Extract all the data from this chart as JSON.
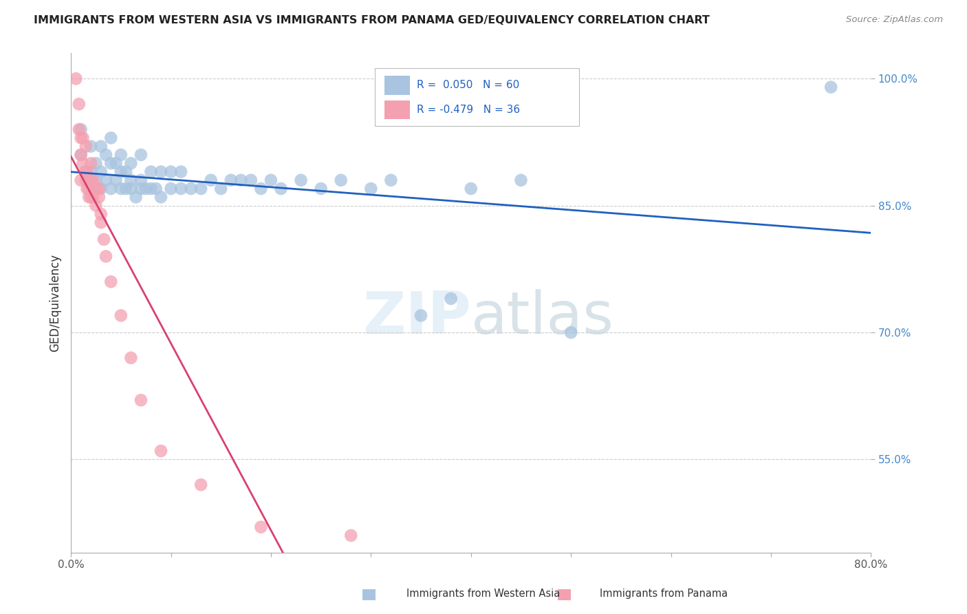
{
  "title": "IMMIGRANTS FROM WESTERN ASIA VS IMMIGRANTS FROM PANAMA GED/EQUIVALENCY CORRELATION CHART",
  "source": "Source: ZipAtlas.com",
  "ylabel": "GED/Equivalency",
  "xlim": [
    0.0,
    0.8
  ],
  "ylim": [
    0.44,
    1.03
  ],
  "x_ticks": [
    0.0,
    0.1,
    0.2,
    0.3,
    0.4,
    0.5,
    0.6,
    0.7,
    0.8
  ],
  "y_ticks": [
    0.55,
    0.7,
    0.85,
    1.0
  ],
  "y_tick_labels": [
    "55.0%",
    "70.0%",
    "85.0%",
    "100.0%"
  ],
  "blue_color": "#a8c4e0",
  "pink_color": "#f4a0b0",
  "line_blue": "#2060c0",
  "line_pink": "#d94070",
  "blue_scatter_x": [
    0.01,
    0.01,
    0.02,
    0.02,
    0.02,
    0.025,
    0.025,
    0.03,
    0.03,
    0.03,
    0.035,
    0.035,
    0.04,
    0.04,
    0.04,
    0.045,
    0.045,
    0.05,
    0.05,
    0.05,
    0.055,
    0.055,
    0.06,
    0.06,
    0.06,
    0.065,
    0.07,
    0.07,
    0.07,
    0.075,
    0.08,
    0.08,
    0.085,
    0.09,
    0.09,
    0.1,
    0.1,
    0.11,
    0.11,
    0.12,
    0.13,
    0.14,
    0.15,
    0.16,
    0.17,
    0.18,
    0.19,
    0.2,
    0.21,
    0.23,
    0.25,
    0.27,
    0.3,
    0.32,
    0.35,
    0.38,
    0.4,
    0.45,
    0.5,
    0.76
  ],
  "blue_scatter_y": [
    0.94,
    0.91,
    0.89,
    0.88,
    0.92,
    0.88,
    0.9,
    0.87,
    0.89,
    0.92,
    0.88,
    0.91,
    0.87,
    0.9,
    0.93,
    0.88,
    0.9,
    0.87,
    0.89,
    0.91,
    0.87,
    0.89,
    0.87,
    0.88,
    0.9,
    0.86,
    0.87,
    0.88,
    0.91,
    0.87,
    0.87,
    0.89,
    0.87,
    0.86,
    0.89,
    0.87,
    0.89,
    0.87,
    0.89,
    0.87,
    0.87,
    0.88,
    0.87,
    0.88,
    0.88,
    0.88,
    0.87,
    0.88,
    0.87,
    0.88,
    0.87,
    0.88,
    0.87,
    0.88,
    0.72,
    0.74,
    0.87,
    0.88,
    0.7,
    0.99
  ],
  "pink_scatter_x": [
    0.005,
    0.008,
    0.008,
    0.01,
    0.01,
    0.01,
    0.012,
    0.012,
    0.014,
    0.015,
    0.015,
    0.016,
    0.016,
    0.018,
    0.018,
    0.02,
    0.02,
    0.02,
    0.022,
    0.022,
    0.025,
    0.025,
    0.028,
    0.028,
    0.03,
    0.03,
    0.033,
    0.035,
    0.04,
    0.05,
    0.06,
    0.07,
    0.09,
    0.13,
    0.19,
    0.28
  ],
  "pink_scatter_y": [
    1.0,
    0.97,
    0.94,
    0.93,
    0.91,
    0.88,
    0.93,
    0.9,
    0.89,
    0.92,
    0.88,
    0.89,
    0.87,
    0.87,
    0.86,
    0.9,
    0.88,
    0.86,
    0.88,
    0.86,
    0.87,
    0.85,
    0.87,
    0.86,
    0.84,
    0.83,
    0.81,
    0.79,
    0.76,
    0.72,
    0.67,
    0.62,
    0.56,
    0.52,
    0.47,
    0.46
  ]
}
